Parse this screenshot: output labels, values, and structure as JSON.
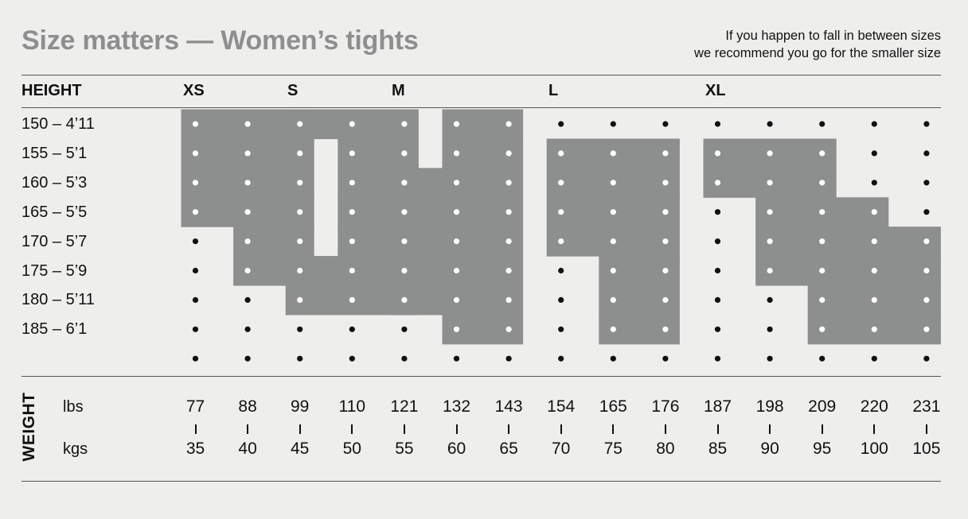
{
  "title": "Size matters — Women’s tights",
  "note": [
    "If you happen to fall in between sizes",
    "we recommend you go for the smaller size"
  ],
  "colors": {
    "background": "#eeeeec",
    "region": "#8d8e8e",
    "title": "#8d8e8e",
    "text": "#111111"
  },
  "chart_data": {
    "type": "table",
    "row_header": "HEIGHT",
    "sizes": [
      "XS",
      "S",
      "M",
      "L",
      "XL"
    ],
    "heights": [
      "150 – 4’11",
      "155 – 5’1",
      "160 – 5’3",
      "165 – 5’5",
      "170 – 5’7",
      "175 – 5’9",
      "180 – 5’11",
      "185 – 6’1"
    ],
    "weight_axis": {
      "label": "WEIGHT",
      "lbs_label": "lbs",
      "kgs_label": "kgs",
      "lbs": [
        "77",
        "88",
        "99",
        "110",
        "121",
        "132",
        "143",
        "154",
        "165",
        "176",
        "187",
        "198",
        "209",
        "220",
        "231"
      ],
      "kgs": [
        "35",
        "40",
        "45",
        "50",
        "55",
        "60",
        "65",
        "70",
        "75",
        "80",
        "85",
        "90",
        "95",
        "100",
        "105"
      ]
    },
    "size_regions": [
      {
        "size": "XS",
        "rows_kg": [
          [
            35,
            45
          ],
          [
            35,
            45
          ],
          [
            35,
            45
          ],
          [
            35,
            45
          ],
          [
            40,
            45
          ],
          [
            40,
            45
          ]
        ]
      },
      {
        "size": "S",
        "rows_kg": [
          [
            45,
            55
          ],
          [
            50,
            55
          ],
          [
            50,
            55
          ],
          [
            50,
            55
          ],
          [
            50,
            55
          ],
          [
            45,
            55
          ],
          [
            45,
            55
          ]
        ]
      },
      {
        "size": "M",
        "rows_kg": [
          [
            60,
            65
          ],
          [
            60,
            65
          ],
          [
            55,
            65
          ],
          [
            55,
            65
          ],
          [
            55,
            65
          ],
          [
            55,
            65
          ],
          [
            55,
            65
          ],
          [
            60,
            65
          ]
        ]
      },
      {
        "size": "L",
        "rows_kg": [
          null,
          [
            70,
            80
          ],
          [
            70,
            80
          ],
          [
            70,
            80
          ],
          [
            70,
            80
          ],
          [
            75,
            80
          ],
          [
            75,
            80
          ],
          [
            75,
            80
          ]
        ]
      },
      {
        "size": "XL",
        "rows_kg": [
          null,
          [
            85,
            95
          ],
          [
            85,
            95
          ],
          [
            90,
            100
          ],
          [
            90,
            105
          ],
          [
            90,
            105
          ],
          [
            95,
            105
          ],
          [
            95,
            105
          ]
        ]
      }
    ]
  }
}
